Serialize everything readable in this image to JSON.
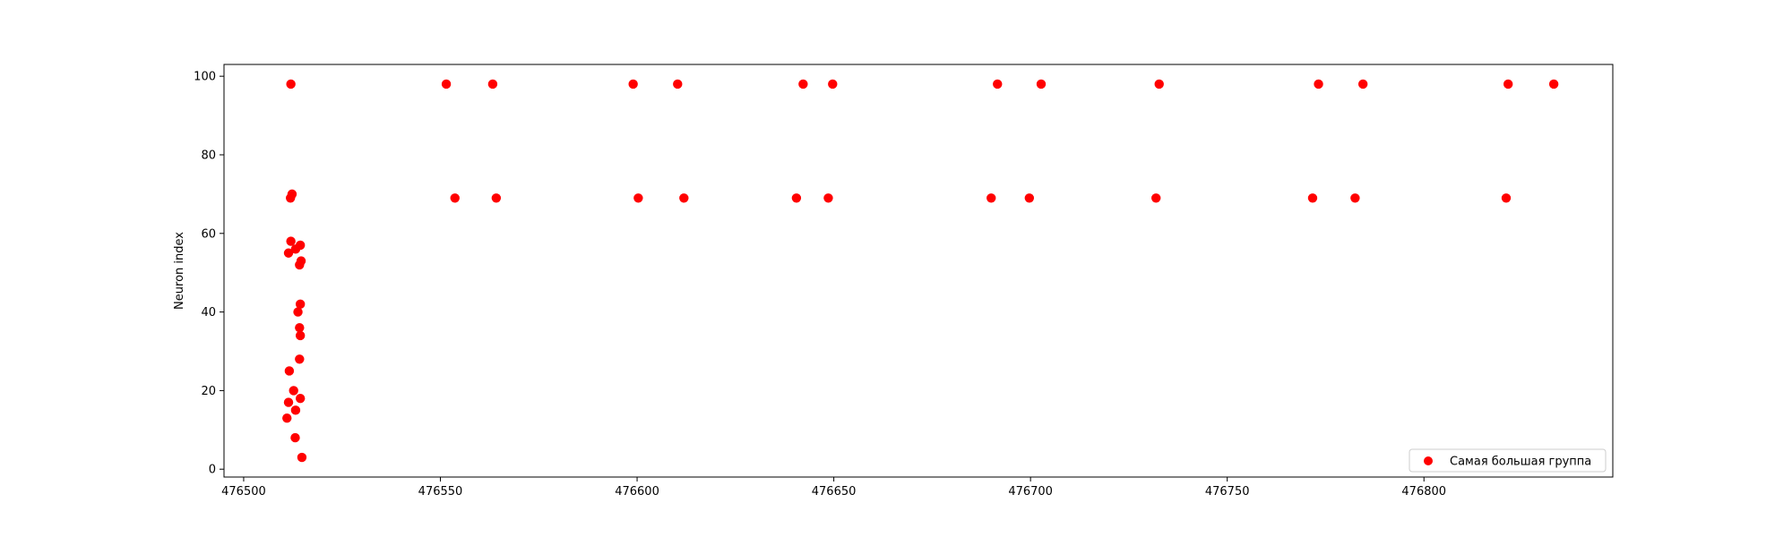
{
  "chart_data": {
    "type": "scatter",
    "title": "",
    "xlabel": "",
    "ylabel": "Neuron index",
    "xlim": [
      476495,
      476848
    ],
    "ylim": [
      -2,
      103
    ],
    "xticks": [
      476500,
      476550,
      476600,
      476650,
      476700,
      476750,
      476800
    ],
    "yticks": [
      0,
      20,
      40,
      60,
      80,
      100
    ],
    "xtick_labels": [
      "476500",
      "476550",
      "476600",
      "476650",
      "476700",
      "476750",
      "476800"
    ],
    "ytick_labels": [
      "0",
      "20",
      "40",
      "60",
      "80",
      "100"
    ],
    "grid": false,
    "legend_position": "lower right",
    "series": [
      {
        "name": "Самая большая группа",
        "color": "#ff0000",
        "marker": "circle",
        "points": [
          [
            476512.0,
            98
          ],
          [
            476551.5,
            98
          ],
          [
            476563.3,
            98
          ],
          [
            476599.0,
            98
          ],
          [
            476610.3,
            98
          ],
          [
            476642.2,
            98
          ],
          [
            476649.7,
            98
          ],
          [
            476691.6,
            98
          ],
          [
            476702.7,
            98
          ],
          [
            476732.7,
            98
          ],
          [
            476773.2,
            98
          ],
          [
            476784.5,
            98
          ],
          [
            476821.4,
            98
          ],
          [
            476833.0,
            98
          ],
          [
            476512.3,
            70
          ],
          [
            476511.9,
            69
          ],
          [
            476553.7,
            69
          ],
          [
            476564.2,
            69
          ],
          [
            476600.3,
            69
          ],
          [
            476611.9,
            69
          ],
          [
            476640.5,
            69
          ],
          [
            476648.6,
            69
          ],
          [
            476690.0,
            69
          ],
          [
            476699.7,
            69
          ],
          [
            476731.9,
            69
          ],
          [
            476771.7,
            69
          ],
          [
            476782.5,
            69
          ],
          [
            476820.9,
            69
          ],
          [
            476512.0,
            58
          ],
          [
            476514.4,
            57
          ],
          [
            476513.2,
            56
          ],
          [
            476511.4,
            55
          ],
          [
            476514.6,
            53
          ],
          [
            476514.2,
            52
          ],
          [
            476514.4,
            42
          ],
          [
            476513.8,
            40
          ],
          [
            476514.2,
            36
          ],
          [
            476514.4,
            34
          ],
          [
            476514.2,
            28
          ],
          [
            476511.6,
            25
          ],
          [
            476512.7,
            20
          ],
          [
            476514.4,
            18
          ],
          [
            476511.4,
            17
          ],
          [
            476513.2,
            15
          ],
          [
            476511.0,
            13
          ],
          [
            476513.1,
            8
          ],
          [
            476514.8,
            3
          ]
        ]
      }
    ]
  }
}
